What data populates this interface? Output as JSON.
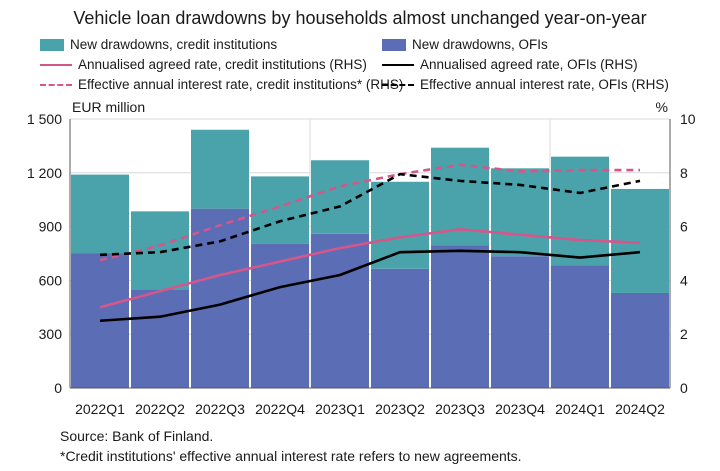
{
  "chart_data": {
    "type": "bar",
    "title": "Vehicle loan drawdowns by households almost unchanged year-on-year",
    "categories": [
      "2022Q1",
      "2022Q2",
      "2022Q3",
      "2022Q4",
      "2023Q1",
      "2023Q2",
      "2023Q3",
      "2023Q4",
      "2024Q1",
      "2024Q2"
    ],
    "left_axis": {
      "unit": "EUR million",
      "ylim": [
        0,
        1500
      ],
      "ticks": [
        "0",
        "300",
        "600",
        "900",
        "1 200",
        "1 500"
      ]
    },
    "right_axis": {
      "unit": "%",
      "ylim": [
        0,
        10
      ],
      "ticks": [
        "0",
        "2",
        "4",
        "6",
        "8",
        "10"
      ]
    },
    "bar_series": [
      {
        "name": "New drawdowns, OFIs",
        "color": "#5b6db5",
        "values": [
          750,
          550,
          1000,
          805,
          860,
          665,
          795,
          735,
          685,
          530
        ]
      },
      {
        "name": "New drawdowns, credit institutions",
        "color": "#4aa3ab",
        "values": [
          440,
          435,
          440,
          375,
          410,
          485,
          545,
          490,
          605,
          580
        ]
      }
    ],
    "line_series": [
      {
        "name": "Annualised agreed rate, credit institutions (RHS)",
        "color": "#d4568a",
        "dashed": false,
        "values": [
          3.0,
          3.6,
          4.2,
          4.7,
          5.2,
          5.6,
          5.9,
          5.7,
          5.5,
          5.4
        ]
      },
      {
        "name": "Annualised agreed rate, OFIs (RHS)",
        "color": "#000000",
        "dashed": false,
        "values": [
          2.5,
          2.65,
          3.1,
          3.75,
          4.2,
          5.05,
          5.1,
          5.05,
          4.85,
          5.05
        ]
      },
      {
        "name": "Effective annual interest rate, credit institutions* (RHS)",
        "color": "#d4568a",
        "dashed": true,
        "values": [
          4.75,
          5.3,
          6.05,
          6.75,
          7.5,
          7.95,
          8.3,
          8.05,
          8.1,
          8.1
        ]
      },
      {
        "name": "Effective annual interest rate, OFIs (RHS)",
        "color": "#000000",
        "dashed": true,
        "values": [
          4.95,
          5.05,
          5.45,
          6.2,
          6.75,
          7.95,
          7.7,
          7.55,
          7.25,
          7.7
        ]
      }
    ],
    "grid": true,
    "legend_placement": "top"
  },
  "footer": {
    "source": "Source: Bank of Finland.",
    "note": "*Credit institutions' effective annual interest rate refers to new agreements."
  }
}
